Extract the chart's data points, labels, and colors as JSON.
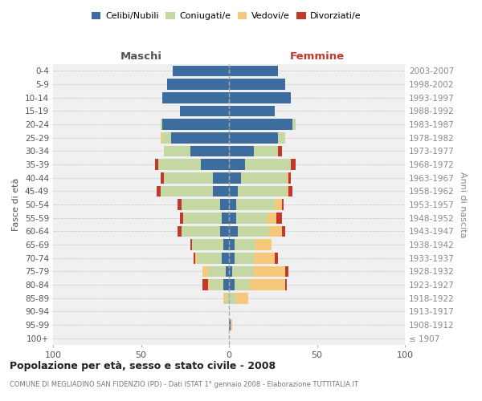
{
  "age_groups": [
    "100+",
    "95-99",
    "90-94",
    "85-89",
    "80-84",
    "75-79",
    "70-74",
    "65-69",
    "60-64",
    "55-59",
    "50-54",
    "45-49",
    "40-44",
    "35-39",
    "30-34",
    "25-29",
    "20-24",
    "15-19",
    "10-14",
    "5-9",
    "0-4"
  ],
  "birth_years": [
    "≤ 1907",
    "1908-1912",
    "1913-1917",
    "1918-1922",
    "1923-1927",
    "1928-1932",
    "1933-1937",
    "1938-1942",
    "1943-1947",
    "1948-1952",
    "1953-1957",
    "1958-1962",
    "1963-1967",
    "1968-1972",
    "1973-1977",
    "1978-1982",
    "1983-1987",
    "1988-1992",
    "1993-1997",
    "1998-2002",
    "2003-2007"
  ],
  "male_celibe": [
    0,
    0,
    0,
    0,
    3,
    2,
    4,
    3,
    5,
    4,
    5,
    9,
    9,
    16,
    22,
    33,
    38,
    28,
    38,
    35,
    32
  ],
  "male_coniugato": [
    0,
    0,
    0,
    2,
    8,
    10,
    14,
    18,
    22,
    22,
    22,
    30,
    28,
    24,
    15,
    5,
    1,
    0,
    0,
    0,
    0
  ],
  "male_vedovo": [
    0,
    0,
    0,
    1,
    1,
    3,
    1,
    0,
    0,
    0,
    0,
    0,
    0,
    0,
    0,
    1,
    0,
    0,
    0,
    0,
    0
  ],
  "male_divorziato": [
    0,
    0,
    0,
    0,
    3,
    0,
    1,
    1,
    2,
    2,
    2,
    2,
    2,
    2,
    0,
    0,
    0,
    0,
    0,
    0,
    0
  ],
  "fem_nubile": [
    0,
    1,
    0,
    0,
    3,
    2,
    3,
    3,
    5,
    4,
    4,
    5,
    7,
    9,
    14,
    28,
    36,
    26,
    35,
    32,
    28
  ],
  "fem_coniugata": [
    0,
    0,
    0,
    4,
    9,
    12,
    11,
    12,
    18,
    18,
    22,
    28,
    26,
    26,
    14,
    4,
    2,
    0,
    0,
    0,
    0
  ],
  "fem_vedova": [
    0,
    1,
    0,
    7,
    20,
    18,
    12,
    9,
    7,
    5,
    4,
    1,
    1,
    0,
    0,
    0,
    0,
    0,
    0,
    0,
    0
  ],
  "fem_divorziata": [
    0,
    0,
    0,
    0,
    1,
    2,
    2,
    0,
    2,
    3,
    1,
    2,
    1,
    3,
    2,
    0,
    0,
    0,
    0,
    0,
    0
  ],
  "color_celibe": "#3d6d9e",
  "color_coniugato": "#c5d8a4",
  "color_vedovo": "#f5c87a",
  "color_divorziato": "#c0392b",
  "legend_labels": [
    "Celibi/Nubili",
    "Coniugati/e",
    "Vedovi/e",
    "Divorziati/e"
  ],
  "title": "Popolazione per età, sesso e stato civile - 2008",
  "subtitle": "COMUNE DI MEGLIADINO SAN FIDENZIO (PD) - Dati ISTAT 1° gennaio 2008 - Elaborazione TUTTITALIA.IT",
  "label_maschi": "Maschi",
  "label_femmine": "Femmine",
  "label_fasce": "Fasce di età",
  "label_anni": "Anni di nascita",
  "xlim": 100,
  "bg_color": "#f0f0f0",
  "bar_height": 0.82
}
